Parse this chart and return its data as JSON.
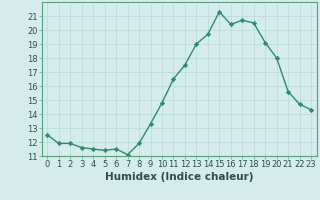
{
  "x": [
    0,
    1,
    2,
    3,
    4,
    5,
    6,
    7,
    8,
    9,
    10,
    11,
    12,
    13,
    14,
    15,
    16,
    17,
    18,
    19,
    20,
    21,
    22,
    23
  ],
  "y": [
    12.5,
    11.9,
    11.9,
    11.6,
    11.5,
    11.4,
    11.5,
    11.1,
    11.9,
    13.3,
    14.8,
    16.5,
    17.5,
    19.0,
    19.7,
    21.3,
    20.4,
    20.7,
    20.5,
    19.1,
    18.0,
    15.6,
    14.7,
    14.3
  ],
  "line_color": "#2e8b6e",
  "marker": "D",
  "marker_size": 2.2,
  "bg_color": "#d5ecec",
  "grid_color": "#b8d8d8",
  "xlabel": "Humidex (Indice chaleur)",
  "ylim": [
    11,
    22
  ],
  "xlim": [
    -0.5,
    23.5
  ],
  "yticks": [
    11,
    12,
    13,
    14,
    15,
    16,
    17,
    18,
    19,
    20,
    21
  ],
  "xticks": [
    0,
    1,
    2,
    3,
    4,
    5,
    6,
    7,
    8,
    9,
    10,
    11,
    12,
    13,
    14,
    15,
    16,
    17,
    18,
    19,
    20,
    21,
    22,
    23
  ],
  "tick_fontsize": 6.0,
  "xlabel_fontsize": 7.5,
  "line_width": 1.0
}
